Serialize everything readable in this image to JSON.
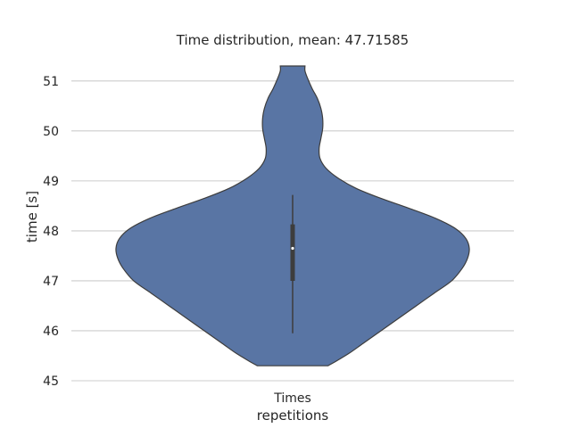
{
  "chart_data": {
    "type": "violin",
    "title": "Time distribution, mean: 47.71585",
    "xlabel": "repetitions",
    "ylabel": "time [s]",
    "categories": [
      "Times"
    ],
    "yticks": [
      45,
      46,
      47,
      48,
      49,
      50,
      51
    ],
    "ylim": [
      45,
      51.55
    ],
    "grid": true,
    "violin_color": "#5975a4",
    "box_color": "#3d3d3d",
    "series": [
      {
        "min": 45.3,
        "max": 51.3,
        "q1": 47.0,
        "median": 47.65,
        "q3": 48.13,
        "whisker_low": 45.95,
        "whisker_high": 48.72,
        "density_profile": [
          [
            45.3,
            0.2
          ],
          [
            45.4,
            0.25
          ],
          [
            45.55,
            0.32
          ],
          [
            45.75,
            0.4
          ],
          [
            46.0,
            0.5
          ],
          [
            46.25,
            0.6
          ],
          [
            46.5,
            0.7
          ],
          [
            46.75,
            0.8
          ],
          [
            47.0,
            0.9
          ],
          [
            47.25,
            0.96
          ],
          [
            47.45,
            0.99
          ],
          [
            47.65,
            1.0
          ],
          [
            47.85,
            0.98
          ],
          [
            48.05,
            0.92
          ],
          [
            48.25,
            0.81
          ],
          [
            48.45,
            0.66
          ],
          [
            48.65,
            0.5
          ],
          [
            48.85,
            0.36
          ],
          [
            49.05,
            0.26
          ],
          [
            49.25,
            0.19
          ],
          [
            49.45,
            0.155
          ],
          [
            49.65,
            0.15
          ],
          [
            49.85,
            0.16
          ],
          [
            50.05,
            0.17
          ],
          [
            50.25,
            0.17
          ],
          [
            50.45,
            0.16
          ],
          [
            50.65,
            0.14
          ],
          [
            50.85,
            0.11
          ],
          [
            51.05,
            0.085
          ],
          [
            51.2,
            0.07
          ],
          [
            51.3,
            0.07
          ]
        ]
      }
    ]
  }
}
